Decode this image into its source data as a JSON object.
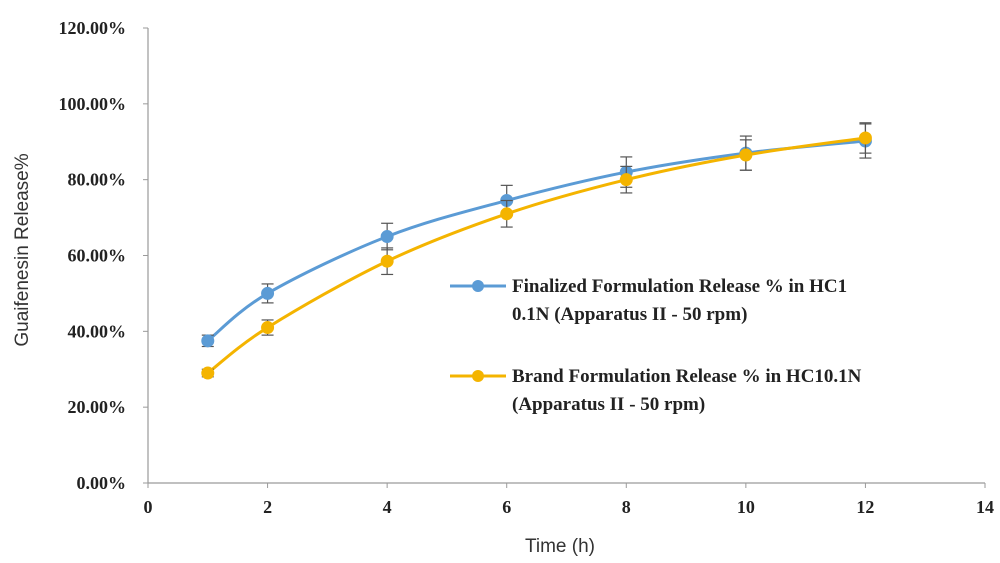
{
  "chart_data": {
    "type": "line",
    "xlabel": "Time (h)",
    "ylabel": "Guaifenesin Release%",
    "xlim": [
      0,
      14
    ],
    "ylim": [
      0,
      1.2
    ],
    "x_ticks": [
      "0",
      "2",
      "4",
      "6",
      "8",
      "10",
      "12",
      "14"
    ],
    "y_ticks": [
      "0.00%",
      "20.00%",
      "40.00%",
      "60.00%",
      "80.00%",
      "100.00%",
      "120.00%"
    ],
    "grid": false,
    "legend_position": "right",
    "series": [
      {
        "name_lines": [
          "Finalized Formulation Release % in HC1",
          "0.1N (Apparatus II - 50 rpm)"
        ],
        "color": "#5b9bd5",
        "x": [
          1,
          2,
          4,
          6,
          8,
          10,
          12
        ],
        "y": [
          0.375,
          0.5,
          0.65,
          0.745,
          0.82,
          0.87,
          0.902
        ],
        "error": [
          0.015,
          0.025,
          0.035,
          0.04,
          0.04,
          0.045,
          0.045
        ]
      },
      {
        "name_lines": [
          "Brand Formulation Release % in HC10.1N",
          "(Apparatus II - 50 rpm)"
        ],
        "color": "#f4b400",
        "x": [
          1,
          2,
          4,
          6,
          8,
          10,
          12
        ],
        "y": [
          0.29,
          0.41,
          0.585,
          0.71,
          0.8,
          0.865,
          0.91
        ],
        "error": [
          0.01,
          0.02,
          0.035,
          0.035,
          0.035,
          0.04,
          0.04
        ]
      }
    ]
  }
}
